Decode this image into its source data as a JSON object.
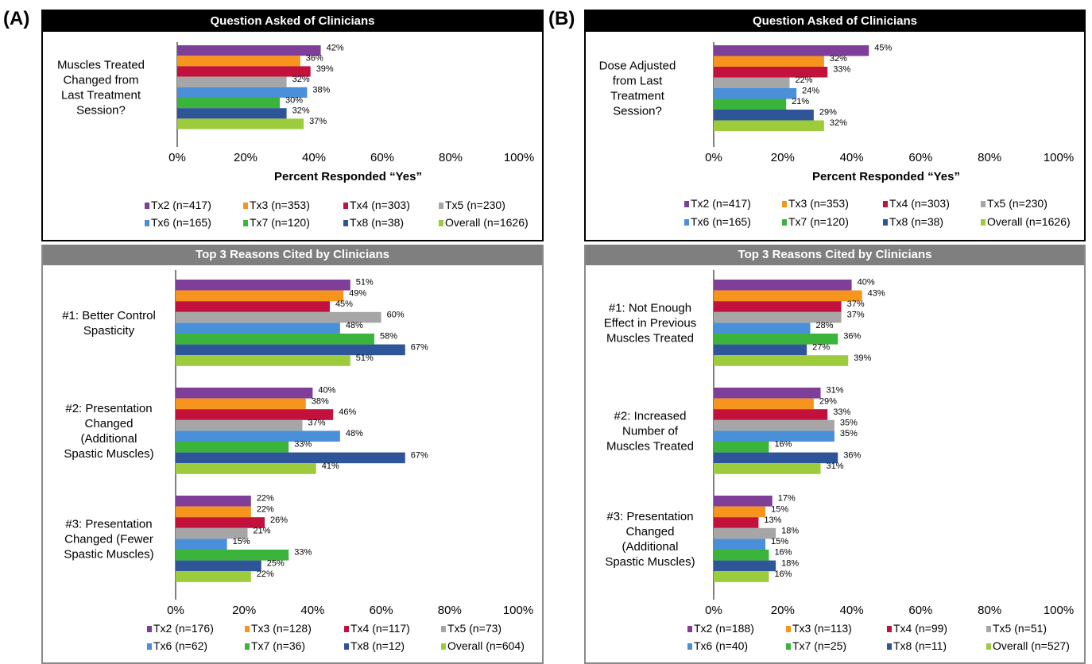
{
  "panels": {
    "A": {
      "label": "(A)",
      "top_header": "Question Asked of Clinicians",
      "bottom_header": "Top 3 Reasons Cited by Clinicians"
    },
    "B": {
      "label": "(B)",
      "top_header": "Question Asked of Clinicians",
      "bottom_header": "Top 3 Reasons Cited by Clinicians"
    }
  },
  "colors": {
    "Tx2": "#7f3f98",
    "Tx3": "#f7941d",
    "Tx4": "#c1113c",
    "Tx5": "#a6a6a6",
    "Tx6": "#4a90d9",
    "Tx7": "#3ab43a",
    "Tx8": "#2e5597",
    "Overall": "#9ccc3c"
  },
  "chart_data": [
    {
      "id": "A-top",
      "type": "bar",
      "orientation": "horizontal",
      "xlabel": "Percent Responded “Yes”",
      "xlim": [
        0,
        100
      ],
      "xticks": [
        "0%",
        "20%",
        "40%",
        "60%",
        "80%",
        "100%"
      ],
      "series_keys": [
        "Tx2",
        "Tx3",
        "Tx4",
        "Tx5",
        "Tx6",
        "Tx7",
        "Tx8",
        "Overall"
      ],
      "legend": [
        "Tx2 (n=417)",
        "Tx3 (n=353)",
        "Tx4 (n=303)",
        "Tx5 (n=230)",
        "Tx6 (n=165)",
        "Tx7 (n=120)",
        "Tx8 (n=38)",
        "Overall (n=1626)"
      ],
      "groups": [
        {
          "label": [
            "Muscles Treated",
            "Changed from",
            "Last Treatment",
            "Session?"
          ],
          "values": [
            42,
            36,
            39,
            32,
            38,
            30,
            32,
            37
          ]
        }
      ]
    },
    {
      "id": "A-bottom",
      "type": "bar",
      "orientation": "horizontal",
      "xlabel": "",
      "xlim": [
        0,
        100
      ],
      "xticks": [
        "0%",
        "20%",
        "40%",
        "60%",
        "80%",
        "100%"
      ],
      "series_keys": [
        "Tx2",
        "Tx3",
        "Tx4",
        "Tx5",
        "Tx6",
        "Tx7",
        "Tx8",
        "Overall"
      ],
      "legend": [
        "Tx2 (n=176)",
        "Tx3 (n=128)",
        "Tx4 (n=117)",
        "Tx5 (n=73)",
        "Tx6 (n=62)",
        "Tx7 (n=36)",
        "Tx8 (n=12)",
        "Overall (n=604)"
      ],
      "groups": [
        {
          "label": [
            "#1: Better Control",
            "Spasticity"
          ],
          "values": [
            51,
            49,
            45,
            60,
            48,
            58,
            67,
            51
          ]
        },
        {
          "label": [
            "#2: Presentation",
            "Changed",
            "(Additional",
            "Spastic Muscles)"
          ],
          "values": [
            40,
            38,
            46,
            37,
            48,
            33,
            67,
            41
          ]
        },
        {
          "label": [
            "#3: Presentation",
            "Changed (Fewer",
            "Spastic Muscles)"
          ],
          "values": [
            22,
            22,
            26,
            21,
            15,
            33,
            25,
            22
          ]
        }
      ]
    },
    {
      "id": "B-top",
      "type": "bar",
      "orientation": "horizontal",
      "xlabel": "Percent Responded “Yes”",
      "xlim": [
        0,
        100
      ],
      "xticks": [
        "0%",
        "20%",
        "40%",
        "60%",
        "80%",
        "100%"
      ],
      "series_keys": [
        "Tx2",
        "Tx3",
        "Tx4",
        "Tx5",
        "Tx6",
        "Tx7",
        "Tx8",
        "Overall"
      ],
      "legend": [
        "Tx2 (n=417)",
        "Tx3 (n=353)",
        "Tx4 (n=303)",
        "Tx5 (n=230)",
        "Tx6 (n=165)",
        "Tx7 (n=120)",
        "Tx8 (n=38)",
        "Overall (n=1626)"
      ],
      "groups": [
        {
          "label": [
            "Dose Adjusted",
            "from Last",
            "Treatment",
            "Session?"
          ],
          "values": [
            45,
            32,
            33,
            22,
            24,
            21,
            29,
            32
          ]
        }
      ]
    },
    {
      "id": "B-bottom",
      "type": "bar",
      "orientation": "horizontal",
      "xlabel": "",
      "xlim": [
        0,
        100
      ],
      "xticks": [
        "0%",
        "20%",
        "40%",
        "60%",
        "80%",
        "100%"
      ],
      "series_keys": [
        "Tx2",
        "Tx3",
        "Tx4",
        "Tx5",
        "Tx6",
        "Tx7",
        "Tx8",
        "Overall"
      ],
      "legend": [
        "Tx2 (n=188)",
        "Tx3 (n=113)",
        "Tx4 (n=99)",
        "Tx5 (n=51)",
        "Tx6 (n=40)",
        "Tx7 (n=25)",
        "Tx8 (n=11)",
        "Overall (n=527)"
      ],
      "groups": [
        {
          "label": [
            "#1: Not Enough",
            "Effect in Previous",
            "Muscles Treated"
          ],
          "values": [
            40,
            43,
            37,
            37,
            28,
            36,
            27,
            39
          ]
        },
        {
          "label": [
            "#2: Increased",
            "Number of",
            "Muscles Treated"
          ],
          "values": [
            31,
            29,
            33,
            35,
            35,
            16,
            36,
            31
          ]
        },
        {
          "label": [
            "#3: Presentation",
            "Changed",
            "(Additional",
            "Spastic Muscles)"
          ],
          "values": [
            17,
            15,
            13,
            18,
            15,
            16,
            18,
            16
          ]
        }
      ]
    }
  ]
}
